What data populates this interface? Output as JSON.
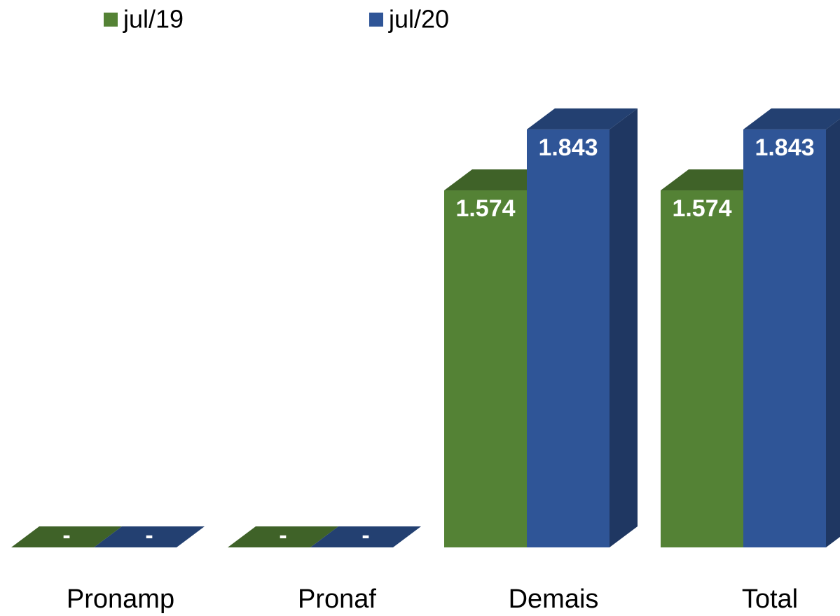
{
  "chart_data": {
    "type": "bar3d",
    "categories": [
      "Pronamp",
      "Pronaf",
      "Demais",
      "Total"
    ],
    "series": [
      {
        "name": "jul/19",
        "color": "#548235",
        "values": [
          0,
          0,
          1574,
          1574
        ],
        "value_labels": [
          "-",
          "-",
          "1.574",
          "1.574"
        ]
      },
      {
        "name": "jul/20",
        "color": "#2f5597",
        "values": [
          0,
          0,
          1843,
          1843
        ],
        "value_labels": [
          "-",
          "-",
          "1.843",
          "1.843"
        ]
      }
    ],
    "ylim": [
      0,
      2000
    ]
  }
}
